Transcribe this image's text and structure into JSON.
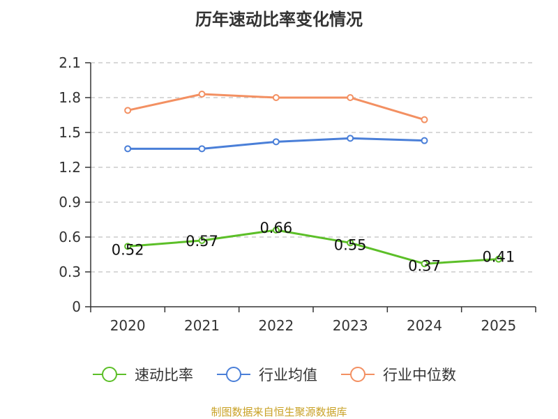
{
  "chart_data": {
    "type": "line",
    "title": "历年速动比率变化情况",
    "categories": [
      "2020",
      "2021",
      "2022",
      "2023",
      "2024",
      "2025"
    ],
    "ylim": [
      0,
      2.1
    ],
    "yticks": [
      "0",
      "0.3",
      "0.6",
      "0.9",
      "1.2",
      "1.5",
      "1.8",
      "2.1"
    ],
    "grid": true,
    "legend_position": "bottom",
    "series": [
      {
        "name": "速动比率",
        "color": "#5cbf28",
        "values": [
          0.52,
          0.57,
          0.66,
          0.55,
          0.37,
          0.41
        ],
        "labels": [
          "0.52",
          "0.57",
          "0.66",
          "0.55",
          "0.37",
          "0.41"
        ]
      },
      {
        "name": "行业均值",
        "color": "#4a7fd8",
        "values": [
          1.36,
          1.36,
          1.42,
          1.45,
          1.43,
          null
        ]
      },
      {
        "name": "行业中位数",
        "color": "#f39062",
        "values": [
          1.69,
          1.83,
          1.8,
          1.8,
          1.61,
          null
        ]
      }
    ]
  },
  "source": "制图数据来自恒生聚源数据库"
}
